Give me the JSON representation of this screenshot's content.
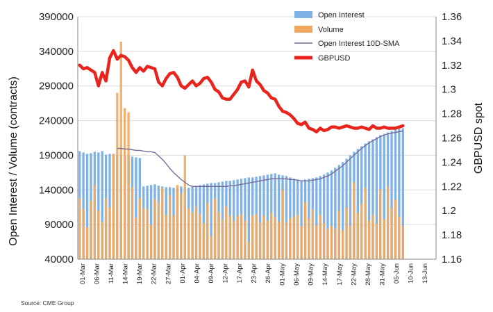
{
  "chart_data": {
    "type": "bar",
    "source": "Source: CME Group",
    "ylabel_left": "Open Interest / Volume (contracts)",
    "ylabel_right": "GBPUSD spot",
    "y_left": {
      "min": 40000,
      "max": 390000,
      "ticks": [
        "40000",
        "90000",
        "140000",
        "190000",
        "240000",
        "290000",
        "340000",
        "390000"
      ]
    },
    "y_right": {
      "min": 1.16,
      "max": 1.36,
      "ticks": [
        "1.16",
        "1.18",
        "1.2",
        "1.22",
        "1.24",
        "1.26",
        "1.28",
        "1.3",
        "1.32",
        "1.34",
        "1.36"
      ]
    },
    "x_tick_labels": [
      "01-Mar",
      "06-Mar",
      "11-Mar",
      "14-Mar",
      "19-Mar",
      "22-Mar",
      "27-Mar",
      "01-Apr",
      "04-Apr",
      "09-Apr",
      "12-Apr",
      "17-Apr",
      "23-Apr",
      "26-Apr",
      "01-May",
      "06-May",
      "09-May",
      "14-May",
      "17-May",
      "22-May",
      "28-May",
      "31-May",
      "05-Jun",
      "10-Jun",
      "13-Jun"
    ],
    "legend": [
      {
        "name": "Open Interest",
        "kind": "bar",
        "color": "#7fb2e5"
      },
      {
        "name": "Volume",
        "kind": "bar",
        "color": "#f0a860"
      },
      {
        "name": "Open Interest 10D-SMA",
        "kind": "line",
        "color": "#7a6a9a"
      },
      {
        "name": "GBPUSD",
        "kind": "line",
        "color": "#e8241c"
      }
    ],
    "series": [
      {
        "name": "Open Interest",
        "axis": "left",
        "values": [
          196000,
          194000,
          192000,
          193000,
          195000,
          194000,
          196000,
          191000,
          192000,
          192000,
          191000,
          190000,
          189000,
          189000,
          188000,
          187000,
          186000,
          145000,
          146000,
          147000,
          148000,
          146000,
          145000,
          144000,
          144000,
          143000,
          144000,
          145000,
          144000,
          143000,
          145000,
          146000,
          147000,
          148000,
          149000,
          150000,
          150000,
          151000,
          152000,
          153000,
          153000,
          154000,
          155000,
          156000,
          157000,
          158000,
          158000,
          159000,
          160000,
          161000,
          162000,
          163000,
          164000,
          162000,
          161000,
          160000,
          158000,
          156000,
          155000,
          154000,
          155000,
          156000,
          157000,
          158000,
          160000,
          162000,
          165000,
          168000,
          172000,
          176000,
          180000,
          185000,
          190000,
          195000,
          199000,
          203000,
          207000,
          210000,
          213000,
          216000,
          219000,
          221000,
          223000,
          225000,
          227000,
          228000,
          229000
        ]
      },
      {
        "name": "Volume",
        "axis": "left",
        "values": [
          128000,
          112000,
          86000,
          124000,
          147000,
          110000,
          94000,
          128000,
          115000,
          192000,
          280000,
          354000,
          258000,
          252000,
          144000,
          100000,
          128000,
          114000,
          112000,
          90000,
          127000,
          122000,
          143000,
          104000,
          132000,
          103000,
          147000,
          135000,
          190000,
          113000,
          108000,
          116000,
          105000,
          92000,
          121000,
          74000,
          127000,
          108000,
          97000,
          116000,
          103000,
          95000,
          102000,
          105000,
          96000,
          65000,
          103000,
          105000,
          93000,
          103000,
          96000,
          107000,
          101000,
          94000,
          140000,
          93000,
          99000,
          102000,
          104000,
          88000,
          122000,
          99000,
          112000,
          89000,
          104000,
          92000,
          84000,
          88000,
          84000,
          110000,
          82000,
          115000,
          88000,
          151000,
          107000,
          120000,
          143000,
          96000,
          104000,
          92000,
          141000,
          98000,
          145000,
          114000,
          126000,
          102000,
          88000
        ]
      },
      {
        "name": "Open Interest 10D-SMA",
        "axis": "left",
        "values": [
          null,
          null,
          null,
          null,
          null,
          null,
          null,
          null,
          null,
          null,
          200000,
          200000,
          199000,
          199000,
          198000,
          197000,
          197000,
          196000,
          195000,
          195000,
          194000,
          189000,
          184000,
          178000,
          171000,
          165000,
          160000,
          155000,
          151000,
          147000,
          145000,
          145000,
          145000,
          145000,
          145000,
          145000,
          145000,
          145000,
          145000,
          145000,
          146000,
          146000,
          147000,
          148000,
          149000,
          150000,
          151000,
          152000,
          153000,
          154000,
          155000,
          156000,
          156000,
          156000,
          156000,
          156000,
          155000,
          155000,
          154000,
          153000,
          153000,
          153000,
          154000,
          155000,
          156000,
          158000,
          160000,
          163000,
          167000,
          171000,
          175000,
          180000,
          185000,
          190000,
          195000,
          200000,
          204000,
          208000,
          211000,
          214000,
          217000,
          219000,
          221000,
          222000,
          223000,
          224000,
          225000
        ]
      },
      {
        "name": "GBPUSD",
        "axis": "right",
        "values": [
          1.32,
          1.317,
          1.318,
          1.316,
          1.314,
          1.303,
          1.314,
          1.307,
          1.326,
          1.332,
          1.325,
          1.328,
          1.327,
          1.324,
          1.318,
          1.314,
          1.318,
          1.315,
          1.319,
          1.318,
          1.317,
          1.306,
          1.303,
          1.309,
          1.313,
          1.314,
          1.31,
          1.303,
          1.301,
          1.304,
          1.307,
          1.303,
          1.305,
          1.309,
          1.31,
          1.306,
          1.3,
          1.298,
          1.293,
          1.292,
          1.292,
          1.296,
          1.3,
          1.306,
          1.307,
          1.302,
          1.316,
          1.307,
          1.304,
          1.299,
          1.297,
          1.293,
          1.292,
          1.286,
          1.282,
          1.281,
          1.279,
          1.276,
          1.272,
          1.271,
          1.273,
          1.268,
          1.267,
          1.265,
          1.268,
          1.266,
          1.267,
          1.269,
          1.269,
          1.268,
          1.269,
          1.27,
          1.269,
          1.268,
          1.268,
          1.269,
          1.268,
          1.267,
          1.27,
          1.268,
          1.268,
          1.269,
          1.268,
          1.268,
          1.268,
          1.269,
          1.27
        ]
      }
    ]
  }
}
